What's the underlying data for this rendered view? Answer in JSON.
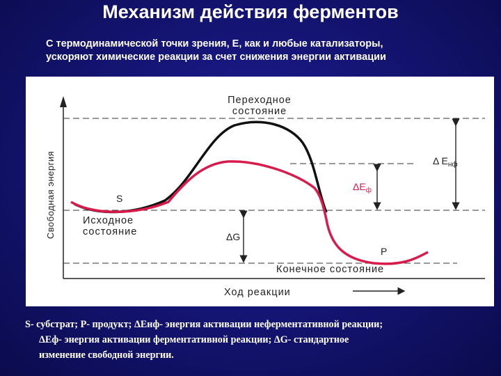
{
  "title": "Механизм действия ферментов",
  "subtitle": {
    "line1": "С термодинамической точки зрения, Е, как и любые катализаторы,",
    "line2": "ускоряют химические реакции за счет снижения энергии активации"
  },
  "diagram": {
    "y_axis_label": "Свободная энергия",
    "x_axis_label": "Ход реакции",
    "transition_state": {
      "line1": "Переходное",
      "line2": "состояние"
    },
    "initial_state": {
      "line1": "Исходное",
      "line2": "состояние"
    },
    "final_state": "Конечное состояние",
    "substrate": "S",
    "product": "P",
    "delta_e_nf": {
      "symbol": "Δ E",
      "sub": "нф"
    },
    "delta_e_f": {
      "symbol": "ΔE",
      "sub": "ф"
    },
    "delta_g": "ΔG",
    "colors": {
      "non_enzymatic": "#111111",
      "enzymatic": "#d81b4a",
      "text": "#222222"
    }
  },
  "caption": {
    "line1": "S- субстрат; Р- продукт; ΔЕнф- энергия активации неферментативной реакции;",
    "line2": "ΔЕф- энергия активации ферментативной реакции; ΔG- стандартное",
    "line3": "изменение свободной энергии."
  }
}
